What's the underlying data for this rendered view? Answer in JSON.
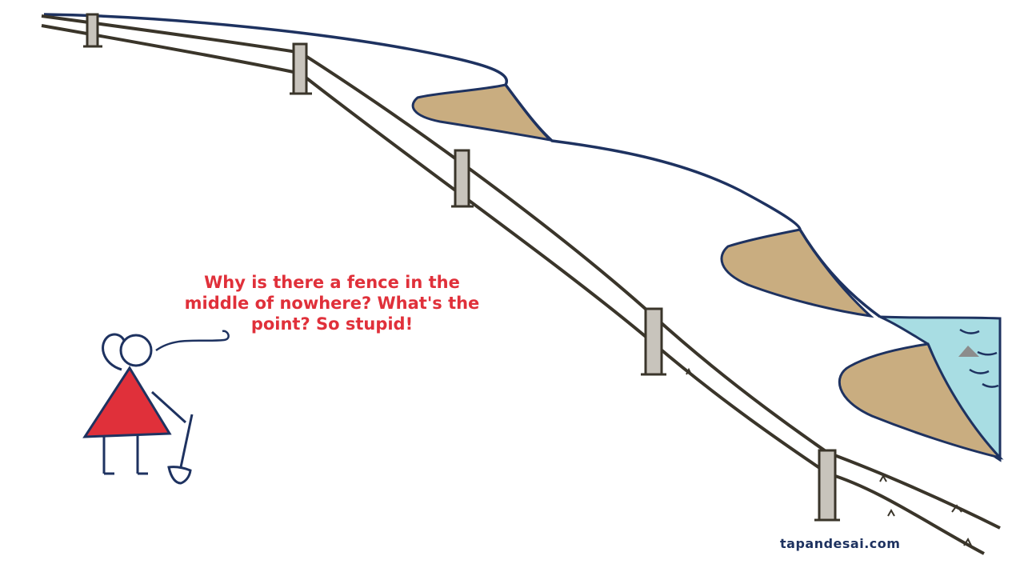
{
  "speech_bubble": {
    "text": "Why is there a fence in the\nmiddle of nowhere? What's the\npoint? So stupid!"
  },
  "watermark": {
    "text": "tapandesai.com"
  },
  "colors": {
    "outline": "#1e3260",
    "fence": "#3a352a",
    "post": "#c8c4bc",
    "sand": "#c9ad80",
    "water": "#a8dde3",
    "speech_text": "#e0303a",
    "person_body": "#e0303a",
    "watermark_text": "#1e3260"
  },
  "icons": {
    "character": "stick-figure-triangle-person",
    "tool": "shovel-icon"
  }
}
